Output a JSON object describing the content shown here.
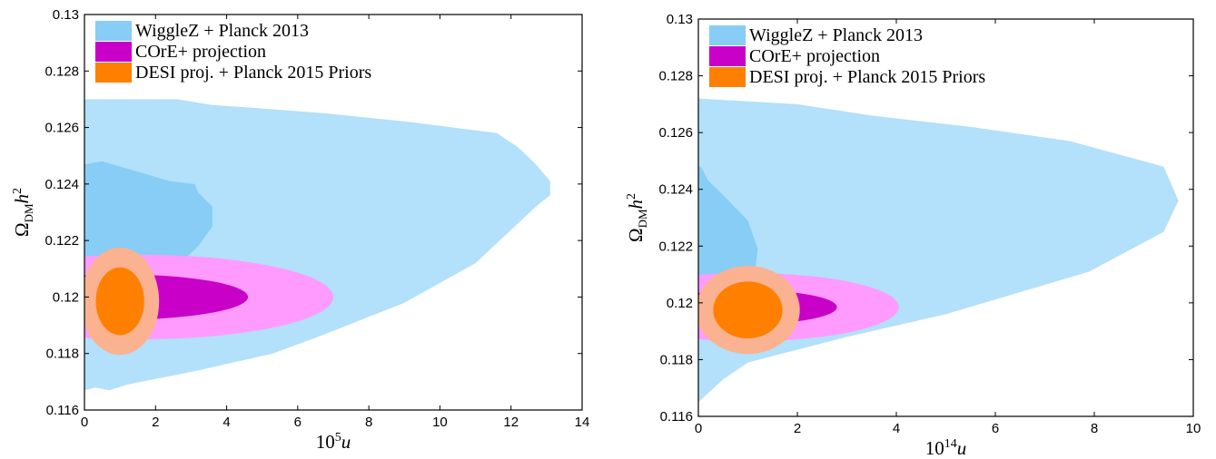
{
  "chart_data": [
    {
      "type": "contour",
      "xlabel": "10⁵u",
      "ylabel": "Ω_DM h²",
      "xlim": [
        0,
        14
      ],
      "ylim": [
        0.116,
        0.13
      ],
      "x_ticks": [
        "0",
        "2",
        "4",
        "6",
        "8",
        "10",
        "12",
        "14"
      ],
      "y_ticks": [
        "0.116",
        "0.118",
        "0.12",
        "0.122",
        "0.124",
        "0.126",
        "0.128",
        "0.13"
      ],
      "legend_position": "top-left",
      "legend": [
        {
          "text": "WiggleZ + Planck 2013",
          "color": "#87cdf5"
        },
        {
          "text": "COrE+ projection",
          "color": "#c800c8"
        },
        {
          "text": "DESI proj. + Planck 2015 Priors",
          "color": "#ff7f00"
        }
      ],
      "series": [
        {
          "name": "WiggleZ + Planck 2013",
          "level": "2σ",
          "color": "#b3e0fa",
          "points": [
            [
              0,
              0.1167
            ],
            [
              0.3,
              0.1168
            ],
            [
              0.7,
              0.1167
            ],
            [
              1.2,
              0.1169
            ],
            [
              3.2,
              0.1174
            ],
            [
              5.3,
              0.118
            ],
            [
              6.8,
              0.1187
            ],
            [
              9,
              0.1198
            ],
            [
              11,
              0.1212
            ],
            [
              12.7,
              0.1232
            ],
            [
              13.1,
              0.1236
            ],
            [
              13.1,
              0.1241
            ],
            [
              12.7,
              0.1247
            ],
            [
              12.2,
              0.1253
            ],
            [
              11.6,
              0.1258
            ],
            [
              9.1,
              0.1262
            ],
            [
              6.8,
              0.1265
            ],
            [
              4.7,
              0.1267
            ],
            [
              3.6,
              0.1268
            ],
            [
              2.6,
              0.127
            ],
            [
              0.8,
              0.127
            ],
            [
              0,
              0.127
            ]
          ]
        },
        {
          "name": "WiggleZ + Planck 2013",
          "level": "1σ",
          "color": "#87cdf5",
          "points": [
            [
              0,
              0.1205
            ],
            [
              1,
              0.1207
            ],
            [
              2.7,
              0.1212
            ],
            [
              3.2,
              0.1218
            ],
            [
              3.6,
              0.1225
            ],
            [
              3.6,
              0.1232
            ],
            [
              3.2,
              0.1237
            ],
            [
              3.1,
              0.124
            ],
            [
              2.4,
              0.1241
            ],
            [
              1.6,
              0.1244
            ],
            [
              0.5,
              0.1248
            ],
            [
              0,
              0.1247
            ]
          ]
        },
        {
          "name": "COrE+ projection",
          "level": "2σ",
          "color": "#ff9bff",
          "ellipse": {
            "cx": 1.5,
            "cy": 0.12,
            "rx": 5.5,
            "ry": 0.0015
          }
        },
        {
          "name": "COrE+ projection",
          "level": "1σ",
          "color": "#c800c8",
          "ellipse": {
            "cx": 1.0,
            "cy": 0.12,
            "rx": 3.6,
            "ry": 0.0008
          }
        },
        {
          "name": "DESI proj. + Planck 2015 Priors",
          "level": "2σ",
          "color": "#fbb290",
          "ellipse": {
            "cx": 1.0,
            "cy": 0.11985,
            "rx": 1.1,
            "ry": 0.0019
          }
        },
        {
          "name": "DESI proj. + Planck 2015 Priors",
          "level": "1σ",
          "color": "#ff7f00",
          "ellipse": {
            "cx": 1.0,
            "cy": 0.11985,
            "rx": 0.68,
            "ry": 0.0012
          }
        }
      ]
    },
    {
      "type": "contour",
      "xlabel": "10¹⁴u",
      "ylabel": "Ω_DM h²",
      "xlim": [
        0,
        10
      ],
      "ylim": [
        0.116,
        0.13
      ],
      "x_ticks": [
        "0",
        "2",
        "4",
        "6",
        "8",
        "10"
      ],
      "y_ticks": [
        "0.116",
        "0.118",
        "0.12",
        "0.122",
        "0.124",
        "0.126",
        "0.128",
        "0.13"
      ],
      "legend_position": "top-left",
      "legend": [
        {
          "text": "WiggleZ + Planck 2013",
          "color": "#87cdf5"
        },
        {
          "text": "COrE+ projection",
          "color": "#c800c8"
        },
        {
          "text": "DESI proj. + Planck 2015 Priors",
          "color": "#ff7f00"
        }
      ],
      "series": [
        {
          "name": "WiggleZ + Planck 2013",
          "level": "2σ",
          "color": "#b3e0fa",
          "points": [
            [
              0,
              0.1165
            ],
            [
              0.5,
              0.1173
            ],
            [
              1,
              0.1179
            ],
            [
              3,
              0.1188
            ],
            [
              5,
              0.1196
            ],
            [
              7.9,
              0.1211
            ],
            [
              9.4,
              0.1225
            ],
            [
              9.7,
              0.1236
            ],
            [
              9.4,
              0.1248
            ],
            [
              7.5,
              0.1257
            ],
            [
              5.5,
              0.1262
            ],
            [
              3.5,
              0.1266
            ],
            [
              2,
              0.127
            ],
            [
              0,
              0.1272
            ]
          ]
        },
        {
          "name": "WiggleZ + Planck 2013",
          "level": "1σ",
          "color": "#87cdf5",
          "points": [
            [
              0,
              0.1198
            ],
            [
              1,
              0.1203
            ],
            [
              1.15,
              0.1212
            ],
            [
              1.2,
              0.1219
            ],
            [
              1,
              0.1229
            ],
            [
              0.5,
              0.1238
            ],
            [
              0.2,
              0.1243
            ],
            [
              0.05,
              0.1248
            ],
            [
              0,
              0.1248
            ]
          ]
        },
        {
          "name": "COrE+ projection",
          "level": "2σ",
          "color": "#ff9bff",
          "ellipse": {
            "cx": 1.0,
            "cy": 0.11985,
            "rx": 3.05,
            "ry": 0.0012
          }
        },
        {
          "name": "COrE+ projection",
          "level": "1σ",
          "color": "#c800c8",
          "ellipse": {
            "cx": 1.0,
            "cy": 0.11985,
            "rx": 1.8,
            "ry": 0.0006
          }
        },
        {
          "name": "DESI proj. + Planck 2015 Priors",
          "level": "2σ",
          "color": "#fbb290",
          "ellipse": {
            "cx": 1.0,
            "cy": 0.11975,
            "rx": 1.05,
            "ry": 0.00155
          }
        },
        {
          "name": "DESI proj. + Planck 2015 Priors",
          "level": "1σ",
          "color": "#ff7f00",
          "ellipse": {
            "cx": 1.0,
            "cy": 0.11975,
            "rx": 0.7,
            "ry": 0.001
          }
        }
      ]
    }
  ]
}
